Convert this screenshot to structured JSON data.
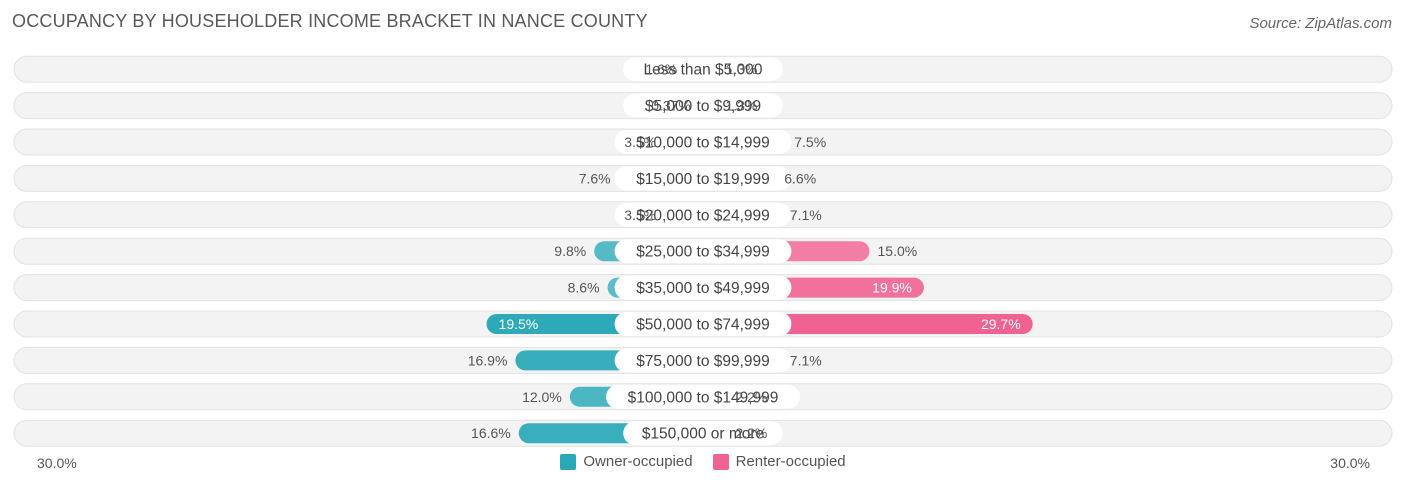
{
  "title": "OCCUPANCY BY HOUSEHOLDER INCOME BRACKET IN NANCE COUNTY",
  "source": "Source: ZipAtlas.com",
  "colors": {
    "owner": "#2ba8b8",
    "owner_light": "#7dcbd4",
    "renter": "#f06292",
    "renter_light": "#f6a8c2",
    "track": "#ececec"
  },
  "axis": {
    "left_label": "30.0%",
    "right_label": "30.0%"
  },
  "legend": {
    "owner": "Owner-occupied",
    "renter": "Renter-occupied"
  },
  "chart_data": {
    "type": "bar",
    "orientation": "horizontal-diverging",
    "title": "OCCUPANCY BY HOUSEHOLDER INCOME BRACKET IN NANCE COUNTY",
    "xlim": [
      -30,
      30
    ],
    "categories": [
      "Less than $5,000",
      "$5,000 to $9,999",
      "$10,000 to $14,999",
      "$15,000 to $19,999",
      "$20,000 to $24,999",
      "$25,000 to $34,999",
      "$35,000 to $49,999",
      "$50,000 to $74,999",
      "$75,000 to $99,999",
      "$100,000 to $149,999",
      "$150,000 or more"
    ],
    "series": [
      {
        "name": "Owner-occupied",
        "values": [
          1.6,
          0.37,
          3.5,
          7.6,
          3.5,
          9.8,
          8.6,
          19.5,
          16.9,
          12.0,
          16.6
        ],
        "labels": [
          "1.6%",
          "0.37%",
          "3.5%",
          "7.6%",
          "3.5%",
          "9.8%",
          "8.6%",
          "19.5%",
          "16.9%",
          "12.0%",
          "16.6%"
        ]
      },
      {
        "name": "Renter-occupied",
        "values": [
          1.3,
          1.3,
          7.5,
          6.6,
          7.1,
          15.0,
          19.9,
          29.7,
          7.1,
          2.2,
          2.2
        ],
        "labels": [
          "1.3%",
          "1.3%",
          "7.5%",
          "6.6%",
          "7.1%",
          "15.0%",
          "19.9%",
          "29.7%",
          "7.1%",
          "2.2%",
          "2.2%"
        ]
      }
    ]
  }
}
